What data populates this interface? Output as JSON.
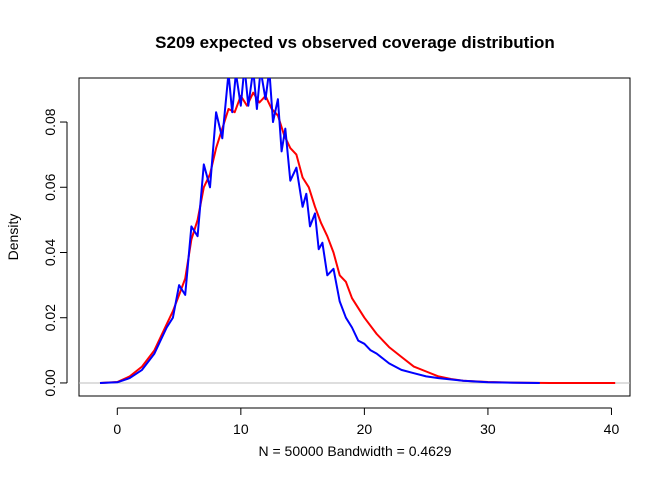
{
  "chart_data": {
    "type": "line",
    "title": "S209  expected vs observed coverage distribution",
    "xlabel": "N = 50000   Bandwidth = 0.4629",
    "ylabel": "Density",
    "xlim": [
      -3.1,
      41.5
    ],
    "ylim": [
      -0.004,
      0.0935
    ],
    "xticks": [
      0,
      10,
      20,
      30,
      40
    ],
    "yticks": [
      "0.00",
      "0.02",
      "0.04",
      "0.06",
      "0.08"
    ],
    "baseline": 0,
    "grid": false,
    "legend": "none",
    "series": [
      {
        "color": "#ff0000",
        "x": [
          -1.4,
          0,
          1,
          2,
          3,
          4,
          4.5,
          5,
          5.5,
          6,
          6.5,
          7,
          7.5,
          8,
          8.5,
          9,
          9.5,
          10,
          10.5,
          11,
          11.5,
          12,
          12.5,
          13,
          13.5,
          14,
          14.5,
          15,
          15.5,
          16,
          16.5,
          17,
          17.5,
          18,
          18.5,
          19,
          20,
          21,
          22,
          23,
          24,
          25,
          26,
          27,
          28,
          30,
          32,
          35,
          40.3
        ],
        "y": [
          0,
          0.0003,
          0.002,
          0.005,
          0.01,
          0.018,
          0.022,
          0.027,
          0.032,
          0.044,
          0.05,
          0.06,
          0.064,
          0.072,
          0.078,
          0.084,
          0.083,
          0.088,
          0.085,
          0.089,
          0.086,
          0.088,
          0.084,
          0.082,
          0.076,
          0.072,
          0.07,
          0.063,
          0.06,
          0.054,
          0.049,
          0.045,
          0.04,
          0.033,
          0.031,
          0.026,
          0.02,
          0.015,
          0.011,
          0.008,
          0.005,
          0.0035,
          0.002,
          0.0012,
          0.0007,
          0.0003,
          0.0001,
          0,
          0
        ]
      },
      {
        "color": "#0000ff",
        "x": [
          -1.4,
          0,
          1,
          2,
          3,
          3.5,
          4,
          4.5,
          5,
          5.5,
          6,
          6.5,
          7,
          7.5,
          8,
          8.5,
          9,
          9.3,
          9.6,
          10,
          10.3,
          10.6,
          11,
          11.3,
          11.6,
          12,
          12.3,
          12.6,
          13,
          13.3,
          13.6,
          14,
          14.5,
          15,
          15.3,
          15.6,
          16,
          16.3,
          16.6,
          17,
          17.5,
          18,
          18.5,
          19,
          19.5,
          20,
          20.5,
          21,
          22,
          23,
          24,
          25,
          26,
          28,
          30,
          34.2
        ],
        "y": [
          0,
          0.0002,
          0.0015,
          0.004,
          0.009,
          0.013,
          0.017,
          0.02,
          0.03,
          0.027,
          0.048,
          0.045,
          0.067,
          0.06,
          0.083,
          0.075,
          0.095,
          0.083,
          0.095,
          0.085,
          0.097,
          0.085,
          0.096,
          0.084,
          0.096,
          0.087,
          0.096,
          0.08,
          0.087,
          0.071,
          0.078,
          0.062,
          0.066,
          0.054,
          0.058,
          0.048,
          0.052,
          0.041,
          0.043,
          0.033,
          0.035,
          0.025,
          0.02,
          0.017,
          0.013,
          0.012,
          0.01,
          0.009,
          0.006,
          0.004,
          0.003,
          0.002,
          0.0015,
          0.0007,
          0.0002,
          0
        ]
      }
    ]
  }
}
